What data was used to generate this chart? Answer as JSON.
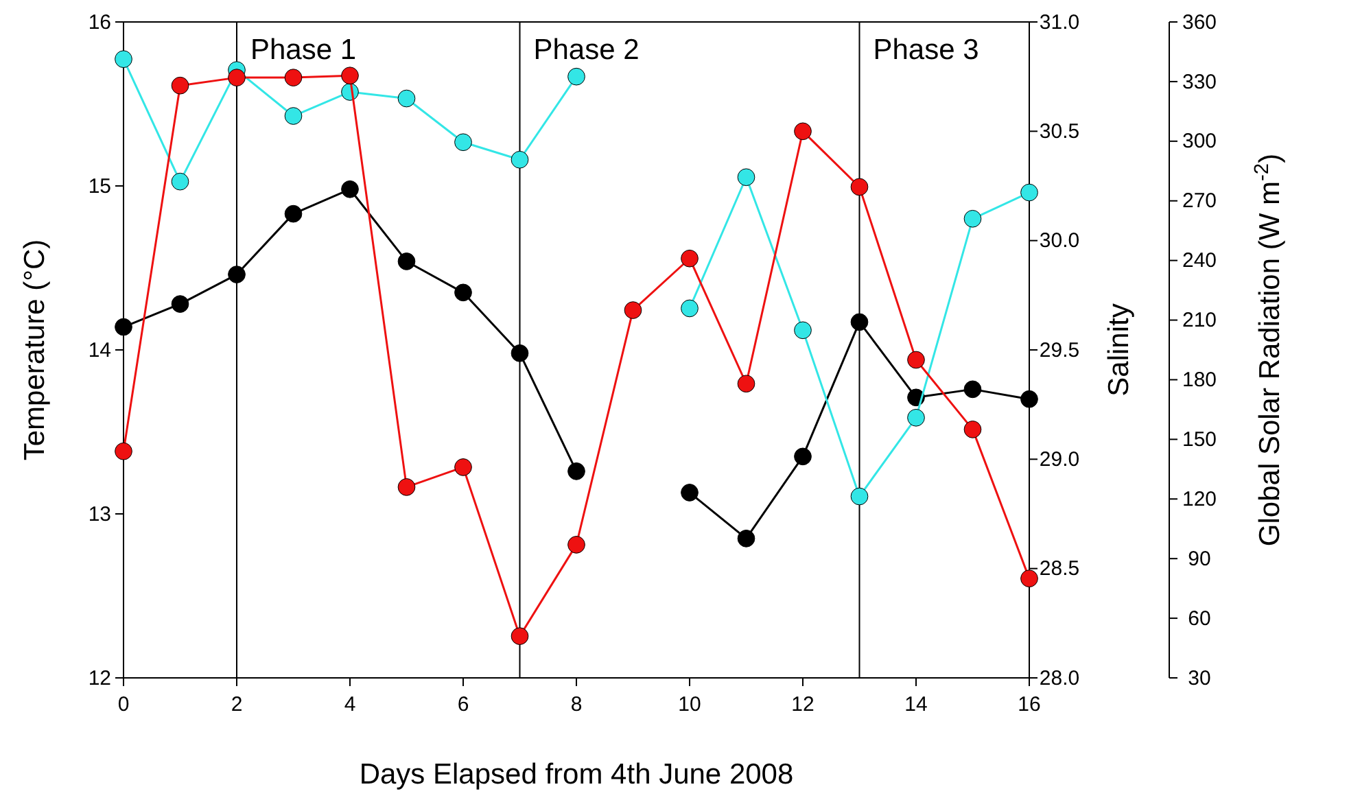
{
  "chart_data": {
    "type": "line",
    "xlabel": "Days Elapsed from 4th June 2008",
    "ylabel": "Temperature (°C)",
    "y2label": "Salinity",
    "y3label": "Global Solar Radiation (W m$^{-2}$)",
    "x": [
      0,
      1,
      2,
      3,
      4,
      5,
      6,
      7,
      8,
      9,
      10,
      11,
      12,
      13,
      14,
      15,
      16
    ],
    "xlim": [
      0,
      16
    ],
    "xticks": [
      0,
      2,
      4,
      6,
      8,
      10,
      12,
      14,
      16
    ],
    "ylim": [
      12,
      16
    ],
    "yticks": [
      12,
      13,
      14,
      15,
      16
    ],
    "y2lim": [
      28,
      31
    ],
    "y2ticks": [
      {
        "value": 28,
        "label": "28.0"
      },
      {
        "value": 28.5,
        "label": "28.5"
      },
      {
        "value": 29,
        "label": "29.0"
      },
      {
        "value": 29.5,
        "label": "29.5"
      },
      {
        "value": 30,
        "label": "30.0"
      },
      {
        "value": 30.5,
        "label": "30.5"
      },
      {
        "value": 31,
        "label": "31.0"
      }
    ],
    "y3lim": [
      30,
      360
    ],
    "y3ticks": [
      30,
      60,
      90,
      120,
      150,
      180,
      210,
      240,
      270,
      300,
      330,
      360
    ],
    "marker": "circle",
    "line_style": "solid",
    "grid": false,
    "series": [
      {
        "color": "#000000",
        "values": [
          14.14,
          14.28,
          14.46,
          14.83,
          14.98,
          14.54,
          14.35,
          13.98,
          13.26,
          null,
          13.13,
          12.85,
          13.35,
          14.17,
          13.71,
          13.76,
          13.7
        ]
      },
      {
        "color": "#33e6e6",
        "axis": "y2",
        "values": [
          30.83,
          30.27,
          30.78,
          30.57,
          30.68,
          30.65,
          30.45,
          30.37,
          30.75,
          null,
          29.69,
          30.29,
          29.59,
          28.83,
          29.19,
          30.1,
          30.22
        ]
      },
      {
        "color": "#ee1111",
        "axis": "y3",
        "values": [
          144,
          328,
          332,
          332,
          333,
          126,
          136,
          51,
          97,
          215,
          241,
          178,
          305,
          277,
          190,
          155,
          80
        ]
      }
    ],
    "ref_lines": [
      {
        "axis": "x",
        "value": 2,
        "label": "Phase 1"
      },
      {
        "axis": "x",
        "value": 7,
        "label": "Phase 2"
      },
      {
        "axis": "x",
        "value": 13,
        "label": "Phase 3"
      }
    ]
  }
}
